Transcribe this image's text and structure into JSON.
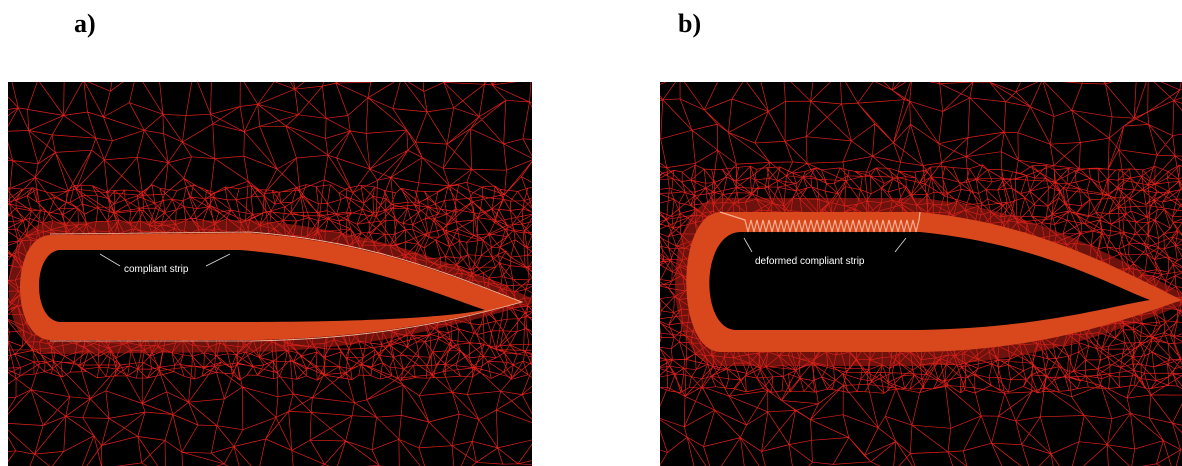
{
  "panels": [
    {
      "label": "a)",
      "annotation": "compliant strip"
    },
    {
      "label": "b)",
      "annotation": "deformed compliant strip"
    }
  ]
}
